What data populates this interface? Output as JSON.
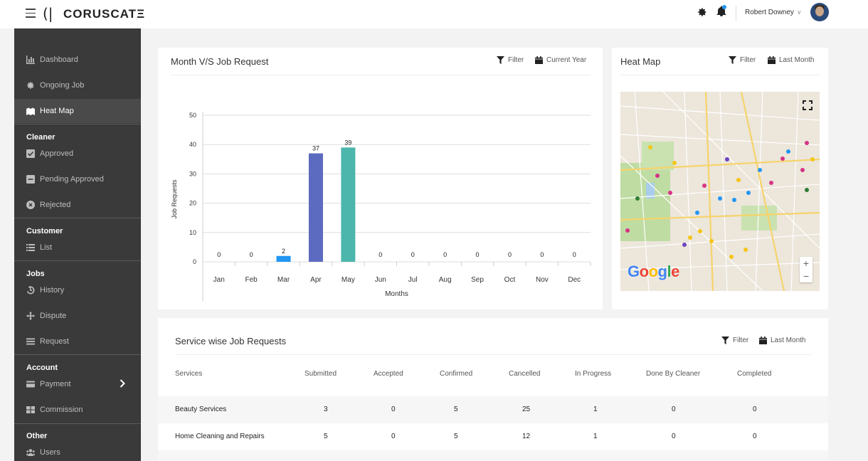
{
  "brand": {
    "name": "CORUSCATΞ",
    "mark": "(|"
  },
  "topbar": {
    "username": "Robert Downey"
  },
  "sidebar": {
    "items": [
      {
        "label": "Dashboard",
        "icon": "bar-chart-icon"
      },
      {
        "label": "Ongoing Job",
        "icon": "gear-icon"
      },
      {
        "label": "Heat Map",
        "icon": "map-icon",
        "active": true
      }
    ],
    "sections": {
      "cleaner": {
        "title": "Cleaner",
        "items": [
          {
            "label": "Approved",
            "icon": "check-square-icon"
          },
          {
            "label": "Pending Approved",
            "icon": "minus-square-icon"
          },
          {
            "label": "Rejected",
            "icon": "x-circle-icon"
          }
        ]
      },
      "customer": {
        "title": "Customer",
        "items": [
          {
            "label": "List",
            "icon": "list-icon"
          }
        ]
      },
      "jobs": {
        "title": "Jobs",
        "items": [
          {
            "label": "History",
            "icon": "history-icon"
          },
          {
            "label": "Dispute",
            "icon": "move-icon"
          },
          {
            "label": "Request",
            "icon": "menu-icon"
          }
        ]
      },
      "account": {
        "title": "Account",
        "items": [
          {
            "label": "Payment",
            "icon": "credit-card-icon"
          },
          {
            "label": "Commission",
            "icon": "grid-icon"
          }
        ]
      },
      "other": {
        "title": "Other",
        "items": [
          {
            "label": "Users",
            "icon": "users-icon"
          }
        ]
      }
    }
  },
  "job_card": {
    "title": "Month V/S Job Request",
    "filter": "Filter",
    "range": "Current Year"
  },
  "heat_card": {
    "title": "Heat Map",
    "filter": "Filter",
    "range": "Last Month",
    "google": "Google"
  },
  "service_card": {
    "title": "Service wise Job Requests",
    "filter": "Filter",
    "range": "Last Month"
  },
  "chart_data": {
    "type": "bar",
    "categories": [
      "Jan",
      "Feb",
      "Mar",
      "Apr",
      "May",
      "Jun",
      "Jul",
      "Aug",
      "Sep",
      "Oct",
      "Nov",
      "Dec"
    ],
    "values": [
      0,
      0,
      2,
      37,
      39,
      0,
      0,
      0,
      0,
      0,
      0,
      0
    ],
    "colors": [
      "#2196f3",
      "#2196f3",
      "#2196f3",
      "#5c6bc0",
      "#4db6ac",
      "#2196f3",
      "#2196f3",
      "#2196f3",
      "#2196f3",
      "#2196f3",
      "#2196f3",
      "#2196f3"
    ],
    "xlabel": "Months",
    "ylabel": "Job Requests",
    "yticks": [
      0,
      10,
      20,
      30,
      40,
      50
    ],
    "ylim": [
      0,
      50
    ],
    "grid": true
  },
  "table": {
    "headers": [
      "Services",
      "Submitted",
      "Accepted",
      "Confirmed",
      "Cancelled",
      "In Progress",
      "Done By Cleaner",
      "Completed"
    ],
    "rows": [
      [
        "Beauty Services",
        "3",
        "0",
        "5",
        "25",
        "1",
        "0",
        "0"
      ],
      [
        "Home Cleaning and Repairs",
        "5",
        "0",
        "5",
        "12",
        "1",
        "0",
        "0"
      ]
    ]
  }
}
